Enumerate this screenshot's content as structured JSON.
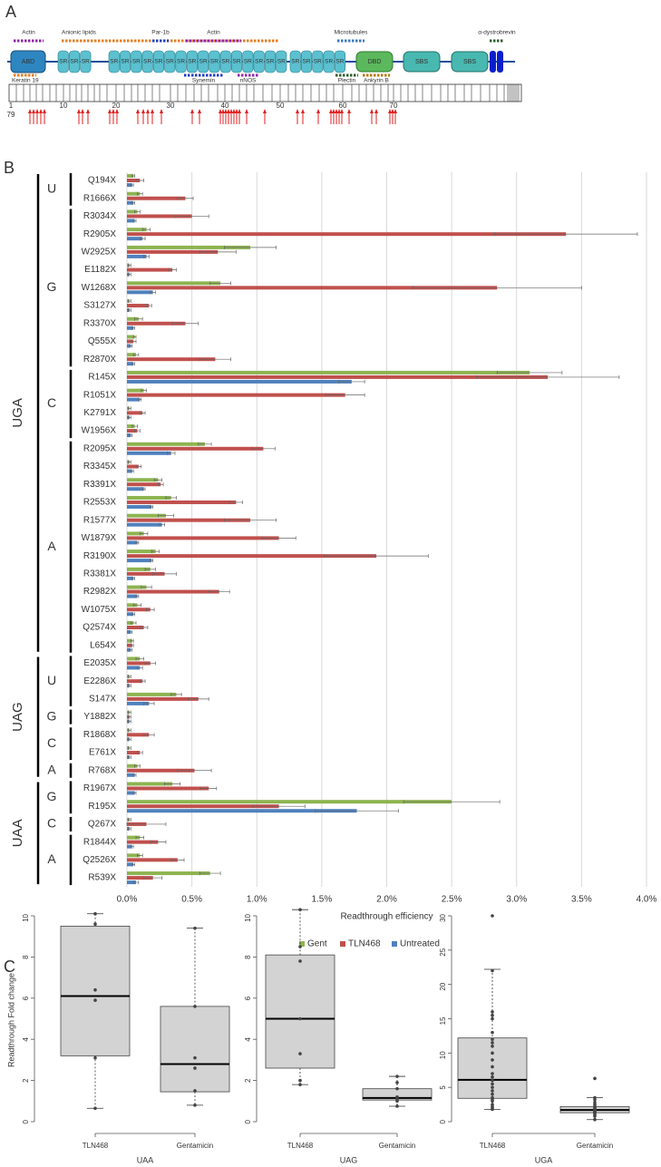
{
  "panel_labels": [
    "A",
    "B",
    "C"
  ],
  "diagram": {
    "partners_top": [
      "Actin",
      "Anionic lipids",
      "Par-1b",
      "Actin",
      "Microtubules",
      "α-dystrobrevin"
    ],
    "partners_bottom": [
      "Keratin 19",
      "Synemin",
      "nNOS",
      "Plectin",
      "Ankyrin B"
    ],
    "domains": [
      "ABD",
      "DBD",
      "SBS",
      "SBS"
    ],
    "repeat_label": "SR",
    "exon_numbers": [
      1,
      10,
      20,
      30,
      40,
      50,
      60,
      70,
      79
    ]
  },
  "chart_data": [
    {
      "type": "hbar_grouped",
      "xlabel": "Readthrough efficiency",
      "xlim": [
        0,
        4
      ],
      "xticks": [
        {
          "value": 0,
          "label": "0.0%"
        },
        {
          "value": 0.5,
          "label": "0.5%"
        },
        {
          "value": 1,
          "label": "1.0%"
        },
        {
          "value": 1.5,
          "label": "1.5%"
        },
        {
          "value": 2,
          "label": "2.0%"
        },
        {
          "value": 2.5,
          "label": "2.5%"
        },
        {
          "value": 3,
          "label": "3.0%"
        },
        {
          "value": 3.5,
          "label": "3.5%"
        },
        {
          "value": 4,
          "label": "4.0%"
        }
      ],
      "grid": true,
      "legend": "bottom",
      "groups": [
        {
          "label": "UGA",
          "subgroups": [
            {
              "label": "U",
              "categories": [
                "Q194X",
                "R1666X"
              ]
            },
            {
              "label": "G",
              "categories": [
                "R3034X",
                "R2905X",
                "W2925X",
                "E1182X",
                "W1268X",
                "S3127X",
                "R3370X",
                "Q555X",
                "R2870X"
              ]
            },
            {
              "label": "C",
              "categories": [
                "R145X",
                "R1051X",
                "K2791X",
                "W1956X"
              ]
            },
            {
              "label": "A",
              "categories": [
                "R2095X",
                "R3345X",
                "R3391X",
                "R2553X",
                "R1577X",
                "W1879X",
                "R3190X",
                "R3381X",
                "R2982X",
                "W1075X",
                "Q2574X",
                "L654X"
              ]
            }
          ]
        },
        {
          "label": "UAG",
          "subgroups": [
            {
              "label": "U",
              "categories": [
                "E2035X",
                "E2286X",
                "S147X"
              ]
            },
            {
              "label": "G",
              "categories": [
                "Y1882X"
              ]
            },
            {
              "label": "C",
              "categories": [
                "R1868X",
                "E761X"
              ]
            },
            {
              "label": "A",
              "categories": [
                "R768X"
              ]
            }
          ]
        },
        {
          "label": "UAA",
          "subgroups": [
            {
              "label": "G",
              "categories": [
                "R1967X",
                "R195X"
              ]
            },
            {
              "label": "C",
              "categories": [
                "Q267X"
              ]
            },
            {
              "label": "A",
              "categories": [
                "R1844X",
                "Q2526X",
                "R539X"
              ]
            }
          ]
        }
      ],
      "series": [
        {
          "name": "Gent",
          "color": "#8db450",
          "values": [
            0.05,
            0.1,
            0.08,
            0.15,
            0.95,
            0.02,
            0.72,
            0.02,
            0.09,
            0.06,
            0.07,
            3.1,
            0.13,
            0.02,
            0.06,
            0.6,
            0.02,
            0.24,
            0.34,
            0.3,
            0.13,
            0.22,
            0.18,
            0.15,
            0.08,
            0.05,
            0.04,
            0.1,
            0.02,
            0.38,
            0.02,
            0.02,
            0.02,
            0.08,
            0.35,
            2.5,
            0.02,
            0.1,
            0.1,
            0.64
          ],
          "errors": [
            0.01,
            0.02,
            0.02,
            0.03,
            0.2,
            0.01,
            0.08,
            0.01,
            0.03,
            0.01,
            0.02,
            0.25,
            0.02,
            0.01,
            0.02,
            0.05,
            0.01,
            0.03,
            0.04,
            0.06,
            0.03,
            0.03,
            0.04,
            0.04,
            0.03,
            0.02,
            0.01,
            0.03,
            0.01,
            0.04,
            0.01,
            0.01,
            0.01,
            0.02,
            0.06,
            0.37,
            0.01,
            0.03,
            0.02,
            0.08
          ]
        },
        {
          "name": "TLN468",
          "color": "#c0504d",
          "values": [
            0.1,
            0.45,
            0.5,
            3.38,
            0.7,
            0.35,
            2.85,
            0.17,
            0.45,
            0.05,
            0.68,
            3.24,
            1.68,
            0.12,
            0.08,
            1.05,
            0.09,
            0.26,
            0.84,
            0.95,
            1.17,
            1.92,
            0.29,
            0.71,
            0.18,
            0.13,
            0.04,
            0.18,
            0.12,
            0.55,
            0.02,
            0.17,
            0.1,
            0.52,
            0.63,
            1.17,
            0.15,
            0.24,
            0.39,
            0.2
          ],
          "errors": [
            0.03,
            0.06,
            0.13,
            0.55,
            0.14,
            0.03,
            0.65,
            0.02,
            0.1,
            0.02,
            0.12,
            0.55,
            0.15,
            0.02,
            0.02,
            0.09,
            0.02,
            0.02,
            0.05,
            0.2,
            0.13,
            0.4,
            0.09,
            0.08,
            0.03,
            0.03,
            0.01,
            0.04,
            0.02,
            0.08,
            0.01,
            0.04,
            0.02,
            0.13,
            0.06,
            0.2,
            0.15,
            0.06,
            0.05,
            0.07
          ]
        },
        {
          "name": "Untreated",
          "color": "#4f81bd",
          "values": [
            0.04,
            0.05,
            0.06,
            0.12,
            0.15,
            0.02,
            0.2,
            0.02,
            0.05,
            0.03,
            0.05,
            1.73,
            0.1,
            0.02,
            0.03,
            0.34,
            0.04,
            0.13,
            0.19,
            0.27,
            0.08,
            0.19,
            0.05,
            0.08,
            0.05,
            0.03,
            0.03,
            0.1,
            0.02,
            0.17,
            0.02,
            0.02,
            0.02,
            0.06,
            0.06,
            1.77,
            0.02,
            0.04,
            0.05,
            0.07
          ],
          "errors": [
            0.01,
            0.01,
            0.01,
            0.02,
            0.02,
            0.01,
            0.02,
            0.01,
            0.01,
            0.01,
            0.01,
            0.1,
            0.01,
            0.01,
            0.01,
            0.03,
            0.01,
            0.01,
            0.01,
            0.02,
            0.01,
            0.01,
            0.01,
            0.01,
            0.01,
            0.01,
            0.01,
            0.02,
            0.01,
            0.04,
            0.01,
            0.01,
            0.01,
            0.01,
            0.01,
            0.32,
            0.01,
            0.01,
            0.01,
            0.02
          ]
        }
      ]
    },
    {
      "type": "box",
      "xlabel": "UAA",
      "ylabel": "Readthrough Fold change",
      "categories": [
        "TLN468",
        "Gentamicin"
      ],
      "ylim": [
        0,
        10
      ],
      "yticks": [
        0,
        2,
        4,
        6,
        8,
        10
      ],
      "boxes": [
        {
          "min": 0.65,
          "q1": 3.2,
          "median": 6.1,
          "q3": 9.5,
          "max": 10.1
        },
        {
          "min": 0.8,
          "q1": 1.45,
          "median": 2.8,
          "q3": 5.6,
          "max": 9.4
        }
      ],
      "points": [
        [
          10.1,
          9.6,
          6.4,
          5.9,
          3.1,
          0.65
        ],
        [
          9.4,
          5.6,
          3.1,
          2.6,
          1.5,
          0.8
        ]
      ]
    },
    {
      "type": "box",
      "xlabel": "UAG",
      "categories": [
        "TLN468",
        "Gentamicin"
      ],
      "ylim": [
        0,
        10
      ],
      "yticks": [
        0,
        2,
        4,
        6,
        8,
        10
      ],
      "boxes": [
        {
          "min": 1.8,
          "q1": 2.6,
          "median": 5.0,
          "q3": 8.1,
          "max": 10.3
        },
        {
          "min": 0.75,
          "q1": 1.05,
          "median": 1.15,
          "q3": 1.6,
          "max": 2.2
        }
      ],
      "points": [
        [
          10.3,
          8.5,
          7.8,
          5.0,
          3.3,
          2.0,
          1.8
        ],
        [
          2.2,
          1.9,
          1.6,
          1.2,
          1.1,
          1.0,
          0.75
        ]
      ]
    },
    {
      "type": "box",
      "xlabel": "UGA",
      "categories": [
        "TLN468",
        "Gentamicin"
      ],
      "ylim": [
        0,
        30
      ],
      "yticks": [
        0,
        5,
        10,
        15,
        20,
        25,
        30
      ],
      "boxes": [
        {
          "min": 1.8,
          "q1": 3.4,
          "median": 6.1,
          "q3": 12.2,
          "max": 22.2
        },
        {
          "min": 0.3,
          "q1": 1.3,
          "median": 1.7,
          "q3": 2.2,
          "max": 3.5
        }
      ],
      "points": [
        [
          30,
          22,
          16,
          15.5,
          15,
          13,
          12,
          11.5,
          11,
          10,
          9,
          8,
          7,
          6.5,
          6,
          5.5,
          5,
          4.5,
          4,
          3.5,
          3.2,
          3,
          2.5,
          2.2,
          2,
          1.8
        ],
        [
          6.3,
          3.5,
          3.2,
          2.8,
          2.5,
          2.2,
          2,
          1.9,
          1.8,
          1.7,
          1.6,
          1.5,
          1.4,
          1.3,
          1.2,
          1,
          0.8,
          0.3
        ]
      ]
    }
  ]
}
